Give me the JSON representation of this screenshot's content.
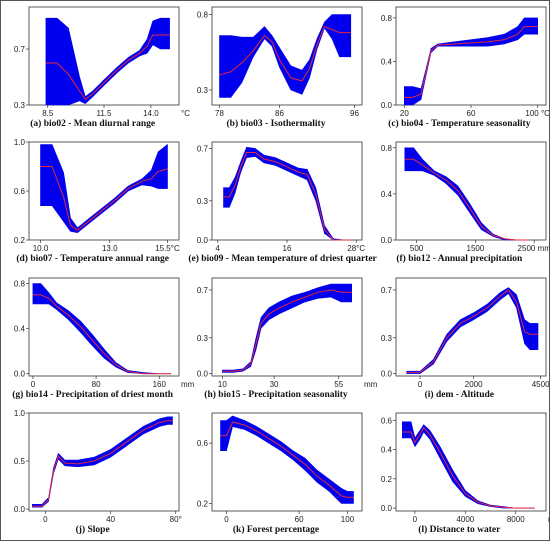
{
  "colors": {
    "band": "#0000ee",
    "mean_line": "#e8263a",
    "frame": "#333333",
    "grid": "#cccccc"
  },
  "chart_data": [
    {
      "type": "area",
      "caption": "(a) bio02 - Mean diurnal range",
      "x_unit": "°C",
      "x_range": [
        7.5,
        15.5
      ],
      "y_range": [
        0.3,
        1.0
      ],
      "x_ticks": [
        "8.5",
        "11.5",
        "14.0"
      ],
      "x_tick_values": [
        8.5,
        11.5,
        14.0
      ],
      "y_ticks": [
        "0.3",
        "0.7"
      ],
      "y_tick_values": [
        0.3,
        0.7
      ],
      "x": [
        8.4,
        9,
        9.6,
        10.2,
        10.5,
        10.9,
        11.5,
        12.2,
        12.8,
        13.4,
        13.8,
        14.1,
        14.5,
        15.0
      ],
      "mean": [
        0.6,
        0.6,
        0.52,
        0.4,
        0.34,
        0.38,
        0.46,
        0.55,
        0.62,
        0.67,
        0.72,
        0.8,
        0.8,
        0.8
      ],
      "lower": [
        0.3,
        0.3,
        0.3,
        0.33,
        0.31,
        0.36,
        0.44,
        0.53,
        0.6,
        0.65,
        0.67,
        0.73,
        0.7,
        0.7
      ],
      "upper": [
        0.92,
        0.92,
        0.85,
        0.5,
        0.36,
        0.4,
        0.48,
        0.57,
        0.64,
        0.69,
        0.77,
        0.9,
        0.92,
        0.92
      ]
    },
    {
      "type": "area",
      "caption": "(b) bio03 - Isothermality",
      "x_unit": "",
      "x_range": [
        77,
        97
      ],
      "y_range": [
        0.2,
        0.85
      ],
      "x_ticks": [
        "78",
        "86",
        "96"
      ],
      "x_tick_values": [
        78,
        86,
        96
      ],
      "y_ticks": [
        "0.3",
        "0.8"
      ],
      "y_tick_values": [
        0.3,
        0.8
      ],
      "x": [
        78,
        79.5,
        81,
        82.5,
        84,
        85,
        86,
        87.5,
        89,
        90,
        91,
        92,
        93,
        94,
        95.5
      ],
      "mean": [
        0.4,
        0.42,
        0.48,
        0.56,
        0.66,
        0.62,
        0.5,
        0.38,
        0.36,
        0.44,
        0.6,
        0.72,
        0.7,
        0.68,
        0.68
      ],
      "lower": [
        0.25,
        0.25,
        0.35,
        0.52,
        0.64,
        0.59,
        0.45,
        0.3,
        0.27,
        0.38,
        0.57,
        0.71,
        0.64,
        0.52,
        0.52
      ],
      "upper": [
        0.66,
        0.66,
        0.65,
        0.65,
        0.72,
        0.66,
        0.58,
        0.46,
        0.43,
        0.5,
        0.64,
        0.75,
        0.8,
        0.8,
        0.8
      ]
    },
    {
      "type": "area",
      "caption": "(c) bio04 - Temperature seasonality",
      "x_unit": "",
      "x_range": [
        15,
        105
      ],
      "y_range": [
        0.0,
        0.9
      ],
      "x_ticks": [
        "20",
        "60",
        "100 °C"
      ],
      "x_tick_values": [
        20,
        60,
        100
      ],
      "y_ticks": [
        "0.0",
        "0.4",
        "0.8"
      ],
      "y_tick_values": [
        0.0,
        0.4,
        0.8
      ],
      "x": [
        20,
        25,
        30,
        33,
        36,
        40,
        50,
        60,
        70,
        80,
        88,
        92,
        100
      ],
      "mean": [
        0.07,
        0.07,
        0.1,
        0.3,
        0.5,
        0.55,
        0.56,
        0.57,
        0.58,
        0.6,
        0.65,
        0.72,
        0.72
      ],
      "lower": [
        0.0,
        0.0,
        0.05,
        0.27,
        0.48,
        0.54,
        0.54,
        0.54,
        0.54,
        0.56,
        0.6,
        0.65,
        0.65
      ],
      "upper": [
        0.17,
        0.17,
        0.15,
        0.33,
        0.52,
        0.56,
        0.58,
        0.6,
        0.62,
        0.65,
        0.72,
        0.8,
        0.8
      ]
    },
    {
      "type": "area",
      "caption": "(d) bio07 - Temperature annual range",
      "x_unit": "",
      "x_range": [
        9.5,
        16
      ],
      "y_range": [
        0.2,
        1.0
      ],
      "x_ticks": [
        "10.0",
        "13.0",
        "15.5°C"
      ],
      "x_tick_values": [
        10.0,
        13.0,
        15.5
      ],
      "y_ticks": [
        "0.2",
        "0.6",
        "1.0"
      ],
      "y_tick_values": [
        0.2,
        0.6,
        1.0
      ],
      "x": [
        10,
        10.5,
        11,
        11.3,
        11.6,
        12,
        12.6,
        13.2,
        13.8,
        14.4,
        14.8,
        15.1,
        15.5
      ],
      "mean": [
        0.8,
        0.8,
        0.55,
        0.32,
        0.28,
        0.34,
        0.43,
        0.52,
        0.62,
        0.68,
        0.7,
        0.76,
        0.78
      ],
      "lower": [
        0.48,
        0.48,
        0.35,
        0.27,
        0.26,
        0.32,
        0.41,
        0.5,
        0.6,
        0.65,
        0.64,
        0.62,
        0.62
      ],
      "upper": [
        0.98,
        0.98,
        0.75,
        0.38,
        0.3,
        0.36,
        0.45,
        0.54,
        0.64,
        0.7,
        0.77,
        0.92,
        0.98
      ]
    },
    {
      "type": "area",
      "caption": "(e) bio09 - Mean temperature of driest quarter",
      "x_unit": "",
      "x_range": [
        3,
        29
      ],
      "y_range": [
        0.0,
        0.75
      ],
      "x_ticks": [
        "4",
        "16",
        "28°C"
      ],
      "x_tick_values": [
        4,
        16,
        28
      ],
      "y_ticks": [
        "0.0",
        "0.3",
        "0.7"
      ],
      "y_tick_values": [
        0.0,
        0.3,
        0.7
      ],
      "x": [
        5,
        6,
        7,
        8,
        9,
        10.5,
        12,
        14,
        16,
        18,
        19.5,
        21,
        22.5,
        24,
        26,
        27
      ],
      "mean": [
        0.33,
        0.33,
        0.42,
        0.56,
        0.67,
        0.67,
        0.62,
        0.6,
        0.56,
        0.52,
        0.5,
        0.35,
        0.08,
        0.0,
        0.0,
        0.0
      ],
      "lower": [
        0.25,
        0.25,
        0.36,
        0.52,
        0.63,
        0.64,
        0.59,
        0.57,
        0.53,
        0.49,
        0.46,
        0.3,
        0.05,
        0.0,
        0.0,
        0.0
      ],
      "upper": [
        0.4,
        0.4,
        0.48,
        0.6,
        0.71,
        0.7,
        0.65,
        0.63,
        0.59,
        0.55,
        0.54,
        0.4,
        0.11,
        0.01,
        0.0,
        0.0
      ]
    },
    {
      "type": "area",
      "caption": "(f) bio12 - Annual precipitation",
      "x_unit": "",
      "x_range": [
        150,
        2700
      ],
      "y_range": [
        0.0,
        0.85
      ],
      "x_ticks": [
        "500",
        "1500",
        "2500 mm"
      ],
      "x_tick_values": [
        500,
        1500,
        2500
      ],
      "y_ticks": [
        "0.0",
        "0.4",
        "0.8"
      ],
      "y_tick_values": [
        0.0,
        0.4,
        0.8
      ],
      "x": [
        300,
        450,
        600,
        800,
        1000,
        1200,
        1400,
        1600,
        1800,
        2000,
        2200,
        2400
      ],
      "mean": [
        0.7,
        0.7,
        0.65,
        0.58,
        0.52,
        0.43,
        0.28,
        0.12,
        0.04,
        0.01,
        0.0,
        0.0
      ],
      "lower": [
        0.6,
        0.6,
        0.6,
        0.56,
        0.49,
        0.39,
        0.24,
        0.09,
        0.03,
        0.0,
        0.0,
        0.0
      ],
      "upper": [
        0.8,
        0.8,
        0.7,
        0.6,
        0.55,
        0.47,
        0.32,
        0.15,
        0.05,
        0.01,
        0.0,
        0.0
      ]
    },
    {
      "type": "area",
      "caption": "(g) bio14 - Precipitation of driest month",
      "x_unit": "mm",
      "x_range": [
        -5,
        185
      ],
      "y_range": [
        -0.02,
        0.85
      ],
      "x_ticks": [
        "0",
        "80",
        "160"
      ],
      "x_tick_values": [
        0,
        80,
        160
      ],
      "y_ticks": [
        "0.0",
        "0.4",
        "0.8"
      ],
      "y_tick_values": [
        0.0,
        0.4,
        0.8
      ],
      "x": [
        0,
        10,
        20,
        30,
        45,
        60,
        75,
        90,
        105,
        120,
        140,
        160,
        175
      ],
      "mean": [
        0.7,
        0.7,
        0.67,
        0.6,
        0.52,
        0.42,
        0.3,
        0.18,
        0.08,
        0.02,
        0.0,
        0.0,
        0.0
      ],
      "lower": [
        0.62,
        0.62,
        0.62,
        0.57,
        0.48,
        0.37,
        0.25,
        0.14,
        0.06,
        0.01,
        0.0,
        0.0,
        0.0
      ],
      "upper": [
        0.8,
        0.8,
        0.72,
        0.63,
        0.56,
        0.47,
        0.35,
        0.22,
        0.1,
        0.03,
        0.01,
        0.0,
        0.0
      ]
    },
    {
      "type": "area",
      "caption": "(h) bio15 - Precipitation seasonality",
      "x_unit": "mm",
      "x_range": [
        6,
        64
      ],
      "y_range": [
        -0.02,
        0.8
      ],
      "x_ticks": [
        "10",
        "30",
        "55"
      ],
      "x_tick_values": [
        10,
        30,
        55
      ],
      "y_ticks": [
        "0.0",
        "0.3",
        "0.7"
      ],
      "y_tick_values": [
        0.0,
        0.3,
        0.7
      ],
      "x": [
        10,
        14,
        18,
        21,
        23,
        25,
        28,
        32,
        37,
        42,
        47,
        52,
        56,
        60
      ],
      "mean": [
        0.02,
        0.02,
        0.03,
        0.08,
        0.25,
        0.42,
        0.5,
        0.55,
        0.6,
        0.64,
        0.68,
        0.7,
        0.68,
        0.68
      ],
      "lower": [
        0.01,
        0.01,
        0.02,
        0.06,
        0.2,
        0.38,
        0.45,
        0.5,
        0.55,
        0.6,
        0.63,
        0.64,
        0.6,
        0.6
      ],
      "upper": [
        0.03,
        0.03,
        0.04,
        0.1,
        0.3,
        0.47,
        0.55,
        0.6,
        0.65,
        0.68,
        0.72,
        0.75,
        0.75,
        0.75
      ]
    },
    {
      "type": "area",
      "caption": "(i) dem - Altitude",
      "x_unit": "",
      "x_range": [
        -900,
        4700
      ],
      "y_range": [
        -0.02,
        0.8
      ],
      "x_ticks": [
        "0",
        "2000",
        "4500"
      ],
      "x_tick_values": [
        0,
        2000,
        4500
      ],
      "y_ticks": [
        "0.0",
        "0.3",
        "0.7"
      ],
      "y_tick_values": [
        0.0,
        0.3,
        0.7
      ],
      "x": [
        -500,
        0,
        500,
        1000,
        1500,
        2000,
        2500,
        3000,
        3300,
        3600,
        3900,
        4100,
        4400
      ],
      "mean": [
        0.01,
        0.01,
        0.1,
        0.3,
        0.42,
        0.48,
        0.55,
        0.65,
        0.7,
        0.6,
        0.35,
        0.33,
        0.33
      ],
      "lower": [
        0.0,
        0.0,
        0.08,
        0.27,
        0.39,
        0.45,
        0.52,
        0.62,
        0.67,
        0.55,
        0.25,
        0.2,
        0.2
      ],
      "upper": [
        0.02,
        0.02,
        0.12,
        0.33,
        0.45,
        0.51,
        0.58,
        0.68,
        0.72,
        0.66,
        0.45,
        0.42,
        0.42
      ]
    },
    {
      "type": "area",
      "caption": "(j) Slope",
      "x_unit": "",
      "x_range": [
        -10,
        82
      ],
      "y_range": [
        -0.02,
        1.0
      ],
      "x_ticks": [
        "0",
        "40",
        "80°"
      ],
      "x_tick_values": [
        0,
        40,
        80
      ],
      "y_ticks": [
        "0.0",
        "0.5",
        "1.0"
      ],
      "y_tick_values": [
        0.0,
        0.5,
        1.0
      ],
      "x": [
        -8,
        -2,
        2,
        5,
        8,
        12,
        20,
        30,
        40,
        50,
        60,
        70,
        75,
        78
      ],
      "mean": [
        0.03,
        0.03,
        0.1,
        0.4,
        0.55,
        0.48,
        0.47,
        0.5,
        0.58,
        0.7,
        0.82,
        0.9,
        0.92,
        0.92
      ],
      "lower": [
        0.02,
        0.02,
        0.08,
        0.37,
        0.52,
        0.45,
        0.44,
        0.46,
        0.54,
        0.66,
        0.78,
        0.86,
        0.88,
        0.88
      ],
      "upper": [
        0.05,
        0.05,
        0.12,
        0.43,
        0.58,
        0.51,
        0.51,
        0.54,
        0.62,
        0.74,
        0.86,
        0.94,
        0.96,
        0.96
      ]
    },
    {
      "type": "area",
      "caption": "(k) Forest percentage",
      "x_unit": "",
      "x_range": [
        -12,
        112
      ],
      "y_range": [
        0.15,
        0.8
      ],
      "x_ticks": [
        "0",
        "60",
        "100"
      ],
      "x_tick_values": [
        0,
        60,
        100
      ],
      "y_ticks": [
        "0.2",
        "0.6"
      ],
      "y_tick_values": [
        0.2,
        0.6
      ],
      "x": [
        -5,
        0,
        5,
        15,
        25,
        35,
        45,
        55,
        65,
        75,
        85,
        95,
        100,
        105
      ],
      "mean": [
        0.65,
        0.65,
        0.74,
        0.72,
        0.68,
        0.63,
        0.58,
        0.52,
        0.46,
        0.38,
        0.32,
        0.25,
        0.24,
        0.24
      ],
      "lower": [
        0.55,
        0.55,
        0.71,
        0.69,
        0.65,
        0.6,
        0.55,
        0.49,
        0.42,
        0.34,
        0.28,
        0.2,
        0.2,
        0.2
      ],
      "upper": [
        0.75,
        0.75,
        0.78,
        0.75,
        0.71,
        0.66,
        0.61,
        0.55,
        0.5,
        0.42,
        0.36,
        0.3,
        0.28,
        0.28
      ]
    },
    {
      "type": "area",
      "caption": "(l) Distance to water",
      "x_unit": "m",
      "x_range": [
        -1500,
        10400
      ],
      "y_range": [
        -0.02,
        0.65
      ],
      "x_ticks": [
        "0",
        "4000",
        "8000"
      ],
      "x_tick_values": [
        0,
        4000,
        8000
      ],
      "y_ticks": [
        "0.0",
        "0.2",
        "0.4",
        "0.6"
      ],
      "y_tick_values": [
        0.0,
        0.2,
        0.4,
        0.6
      ],
      "x": [
        -1000,
        -300,
        0,
        400,
        700,
        1200,
        2000,
        3000,
        4000,
        5000,
        6000,
        7000,
        8000,
        9000,
        9500
      ],
      "mean": [
        0.52,
        0.52,
        0.45,
        0.5,
        0.55,
        0.5,
        0.38,
        0.22,
        0.1,
        0.04,
        0.015,
        0.005,
        0.0,
        0.0,
        0.0
      ],
      "lower": [
        0.48,
        0.48,
        0.42,
        0.47,
        0.52,
        0.47,
        0.34,
        0.18,
        0.08,
        0.03,
        0.01,
        0.0,
        0.0,
        0.0,
        0.0
      ],
      "upper": [
        0.59,
        0.59,
        0.48,
        0.53,
        0.57,
        0.53,
        0.42,
        0.26,
        0.12,
        0.05,
        0.02,
        0.01,
        0.0,
        0.0,
        0.0
      ]
    }
  ]
}
